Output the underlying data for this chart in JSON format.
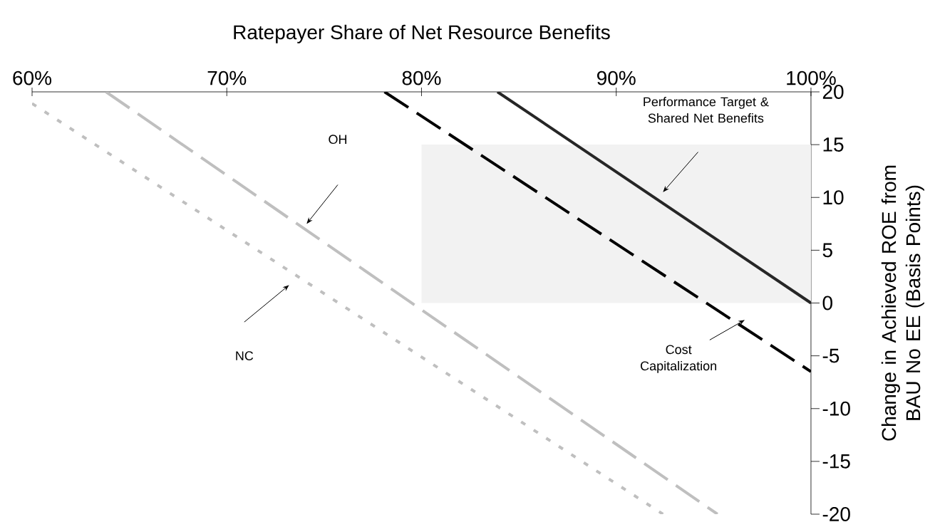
{
  "chart_data": {
    "type": "line",
    "xlabel": "Ratepayer Share of Net Resource Benefits",
    "ylabel": "Change in Achieved ROE from BAU No EE (Basis Points)",
    "xlim": [
      60,
      100
    ],
    "ylim": [
      -20,
      20
    ],
    "xticks": [
      {
        "value": 60,
        "label": "60%"
      },
      {
        "value": 70,
        "label": "70%"
      },
      {
        "value": 80,
        "label": "80%"
      },
      {
        "value": 90,
        "label": "90%"
      },
      {
        "value": 100,
        "label": "100%"
      }
    ],
    "yticks": [
      -20,
      -15,
      -10,
      -5,
      0,
      5,
      10,
      15,
      20
    ],
    "series": [
      {
        "type": "area",
        "color": "#f2f2f2",
        "x": [
          80,
          100
        ],
        "values": [
          15,
          15
        ]
      },
      {
        "color": "#262626",
        "line_style": "solid",
        "x": [
          83.9,
          100
        ],
        "values": [
          20,
          0
        ]
      },
      {
        "color": "#000000",
        "line_style": "dashed",
        "x": [
          78.1,
          100
        ],
        "values": [
          20,
          -6.5
        ]
      },
      {
        "color": "#bfbfbf",
        "line_style": "dashed",
        "x": [
          63.8,
          95.2
        ],
        "values": [
          20,
          -20
        ]
      },
      {
        "color": "#bfbfbf",
        "line_style": "dotted",
        "x": [
          60,
          92.4
        ],
        "values": [
          18.9,
          -20
        ]
      }
    ],
    "annotations": [
      "Performance Target & Shared Net Benefits",
      "OH",
      "NC",
      "Cost Capitalization"
    ]
  }
}
